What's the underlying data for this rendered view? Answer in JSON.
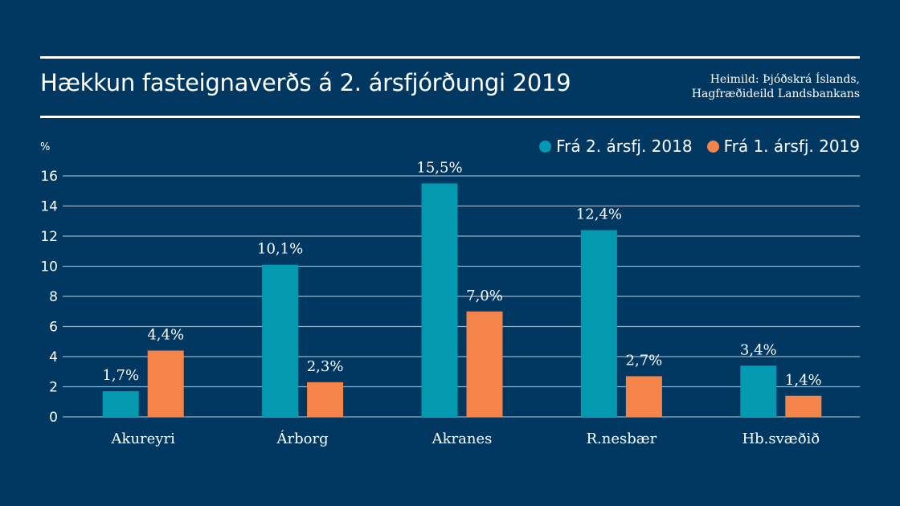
{
  "header": {
    "title": "Hækkun fasteignaverðs á 2. ársfjórðungi 2019",
    "source_line1": "Heimild: Þjóðskrá Íslands,",
    "source_line2": "Hagfræðideild Landsbankans"
  },
  "colors": {
    "background": "#013861",
    "series1": "#0399AE",
    "series2": "#F5844A",
    "grid": "#9AB0C4",
    "text": "#FFFFFF"
  },
  "chart_data": {
    "type": "bar",
    "title": "Hækkun fasteignaverðs á 2. ársfjórðungi 2019",
    "xlabel": "",
    "ylabel": "%",
    "ylim": [
      0,
      16
    ],
    "yticks": [
      0,
      2,
      4,
      6,
      8,
      10,
      12,
      14,
      16
    ],
    "grid": true,
    "legend_position": "top-right",
    "categories": [
      "Akureyri",
      "Árborg",
      "Akranes",
      "R.nesbær",
      "Hb.svæðið"
    ],
    "series": [
      {
        "name": "Frá 2. ársfj. 2018",
        "color": "#0399AE",
        "values": [
          1.7,
          10.1,
          15.5,
          12.4,
          3.4
        ],
        "labels": [
          "1,7%",
          "10,1%",
          "15,5%",
          "12,4%",
          "3,4%"
        ]
      },
      {
        "name": "Frá 1. ársfj. 2019",
        "color": "#F5844A",
        "values": [
          4.4,
          2.3,
          7.0,
          2.7,
          1.4
        ],
        "labels": [
          "4,4%",
          "2,3%",
          "7,0%",
          "2,7%",
          "1,4%"
        ]
      }
    ]
  }
}
